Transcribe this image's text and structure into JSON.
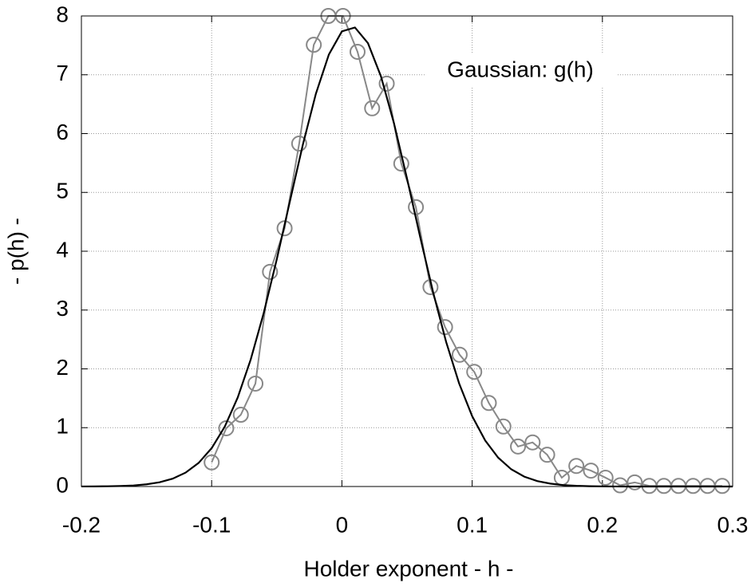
{
  "chart_data": {
    "type": "line",
    "xlabel": "Holder exponent - h -",
    "ylabel": "- p(h) -",
    "xlim": [
      -0.2,
      0.3
    ],
    "ylim": [
      0,
      8
    ],
    "xticks": [
      -0.2,
      -0.1,
      0,
      0.1,
      0.2,
      0.3
    ],
    "yticks": [
      0,
      1,
      2,
      3,
      4,
      5,
      6,
      7,
      8
    ],
    "grid": true,
    "series": [
      {
        "color": "#888888",
        "marker": "circle",
        "x": [
          -0.1,
          -0.0888,
          -0.0776,
          -0.0664,
          -0.0552,
          -0.044,
          -0.0328,
          -0.0216,
          -0.0104,
          0.0008,
          0.012,
          0.0232,
          0.0344,
          0.0456,
          0.0568,
          0.068,
          0.0792,
          0.0904,
          0.1016,
          0.1128,
          0.124,
          0.1352,
          0.1464,
          0.1576,
          0.1688,
          0.18,
          0.1912,
          0.2024,
          0.2136,
          0.2248,
          0.236,
          0.2472,
          0.2584,
          0.2696,
          0.2808,
          0.292
        ],
        "values": [
          0.41,
          0.99,
          1.22,
          1.75,
          3.65,
          4.39,
          5.83,
          7.51,
          8.0,
          8.0,
          7.39,
          6.43,
          6.85,
          5.49,
          4.75,
          3.39,
          2.71,
          2.24,
          1.95,
          1.42,
          1.02,
          0.68,
          0.75,
          0.54,
          0.15,
          0.35,
          0.27,
          0.15,
          0.02,
          0.07,
          0.01,
          0.01,
          0.01,
          0.01,
          0.01,
          0.01
        ]
      },
      {
        "name": "Gaussian: g(h)",
        "color": "#000000",
        "x": [
          -0.2,
          -0.19,
          -0.18,
          -0.17,
          -0.16,
          -0.15,
          -0.14,
          -0.13,
          -0.12,
          -0.11,
          -0.1,
          -0.09,
          -0.08,
          -0.07,
          -0.06,
          -0.05,
          -0.04,
          -0.03,
          -0.02,
          -0.01,
          0,
          0.01,
          0.02,
          0.03,
          0.04,
          0.05,
          0.06,
          0.07,
          0.08,
          0.09,
          0.1,
          0.11,
          0.12,
          0.13,
          0.14,
          0.15,
          0.16,
          0.17,
          0.18,
          0.19,
          0.2,
          0.21,
          0.22,
          0.23,
          0.24,
          0.25,
          0.26,
          0.27,
          0.28,
          0.29,
          0.3
        ],
        "values": [
          0.0007,
          0.0017,
          0.004,
          0.0087,
          0.018,
          0.037,
          0.072,
          0.133,
          0.236,
          0.401,
          0.652,
          1.015,
          1.512,
          2.16,
          2.952,
          3.863,
          4.843,
          5.81,
          6.676,
          7.345,
          7.738,
          7.804,
          7.538,
          6.972,
          6.174,
          5.236,
          4.251,
          3.305,
          2.46,
          1.753,
          1.196,
          0.782,
          0.49,
          0.293,
          0.168,
          0.092,
          0.049,
          0.024,
          0.012,
          0.0055,
          0.0024,
          0.001,
          0.0004,
          0.0002,
          0.0001,
          0,
          0,
          0,
          0,
          0,
          0
        ]
      }
    ]
  }
}
